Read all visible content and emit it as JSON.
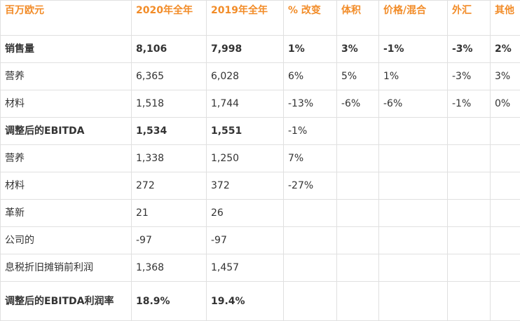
{
  "headers": [
    "百万欧元",
    "2020年全年",
    "2019年全年",
    "% 改变",
    "体积",
    "价格/混合",
    "外汇",
    "其他"
  ],
  "rows": [
    {
      "bold": true,
      "cells": [
        "销售量",
        "8,106",
        "7,998",
        "1%",
        "3%",
        "-1%",
        "-3%",
        "2%"
      ]
    },
    {
      "bold": false,
      "cells": [
        "营养",
        "6,365",
        "6,028",
        "6%",
        "5%",
        "1%",
        "-3%",
        "3%"
      ]
    },
    {
      "bold": false,
      "cells": [
        "材料",
        "1,518",
        "1,744",
        "-13%",
        "-6%",
        "-6%",
        "-1%",
        "0%"
      ]
    },
    {
      "bold": true,
      "cells": [
        "调整后的EBITDA",
        "1,534",
        "1,551",
        "-1%",
        "",
        "",
        "",
        ""
      ]
    },
    {
      "bold": false,
      "cells": [
        "营养",
        "1,338",
        "1,250",
        "7%",
        "",
        "",
        "",
        ""
      ]
    },
    {
      "bold": false,
      "cells": [
        "材料",
        "272",
        "372",
        "-27%",
        "",
        "",
        "",
        ""
      ]
    },
    {
      "bold": false,
      "cells": [
        "革新",
        "21",
        "26",
        "",
        "",
        "",
        "",
        ""
      ]
    },
    {
      "bold": false,
      "cells": [
        "公司的",
        "-97",
        "-97",
        "",
        "",
        "",
        "",
        ""
      ]
    },
    {
      "bold": false,
      "cells": [
        "息税折旧摊销前利润",
        "1,368",
        "1,457",
        "",
        "",
        "",
        "",
        ""
      ]
    },
    {
      "bold": true,
      "cells": [
        "调整后的EBITDA利润率",
        "18.9%",
        "19.4%",
        "",
        "",
        "",
        "",
        ""
      ]
    }
  ]
}
